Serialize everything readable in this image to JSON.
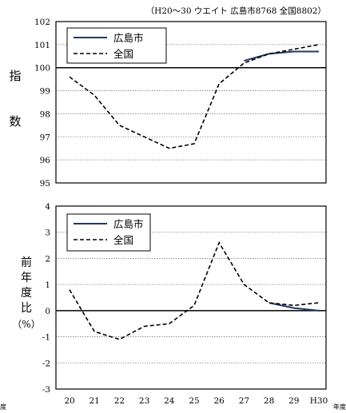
{
  "header_note": "（H20～30  ウエイト 広島市8768  全国8802）",
  "year_unit": "年度",
  "year_unit_left": "度",
  "categories": [
    "20",
    "21",
    "22",
    "23",
    "24",
    "25",
    "26",
    "27",
    "28",
    "29",
    "H30"
  ],
  "top_ylabel_chars": [
    "指",
    "数"
  ],
  "bottom_ylabel_chars": [
    "前",
    "年",
    "度",
    "比"
  ],
  "bottom_ylabel_unit": "（%）",
  "colors": {
    "hiroshima": "#1f3864",
    "zenkoku": "#000000",
    "grid": "#808080",
    "axis": "#000000"
  },
  "chart_data": [
    {
      "type": "line",
      "x": [
        "20",
        "21",
        "22",
        "23",
        "24",
        "25",
        "26",
        "27",
        "28",
        "29",
        "H30"
      ],
      "ylim": [
        95,
        102
      ],
      "yticks": [
        "95",
        "96",
        "97",
        "98",
        "99",
        "100",
        "101",
        "102"
      ],
      "baseline": 100,
      "grid": true,
      "legend_position": "top-left",
      "series": [
        {
          "name": "広島市",
          "style": "solid",
          "values": [
            null,
            null,
            null,
            null,
            null,
            null,
            null,
            100.3,
            100.6,
            100.7,
            100.7
          ]
        },
        {
          "name": "全国",
          "style": "dashed",
          "values": [
            99.6,
            98.8,
            97.5,
            97.0,
            96.5,
            96.7,
            99.3,
            100.2,
            100.6,
            100.8,
            101.0
          ]
        }
      ]
    },
    {
      "type": "line",
      "x": [
        "20",
        "21",
        "22",
        "23",
        "24",
        "25",
        "26",
        "27",
        "28",
        "29",
        "H30"
      ],
      "ylim": [
        -3,
        4
      ],
      "yticks": [
        "-3",
        "-2",
        "-1",
        "0",
        "1",
        "2",
        "3",
        "4"
      ],
      "baseline": 0,
      "grid": true,
      "legend_position": "top-left",
      "series": [
        {
          "name": "広島市",
          "style": "solid",
          "values": [
            null,
            null,
            null,
            null,
            null,
            null,
            null,
            null,
            0.3,
            0.1,
            0.0
          ]
        },
        {
          "name": "全国",
          "style": "dashed",
          "values": [
            0.8,
            -0.8,
            -1.1,
            -0.6,
            -0.5,
            0.2,
            2.6,
            1.0,
            0.3,
            0.2,
            0.3
          ]
        }
      ]
    }
  ]
}
